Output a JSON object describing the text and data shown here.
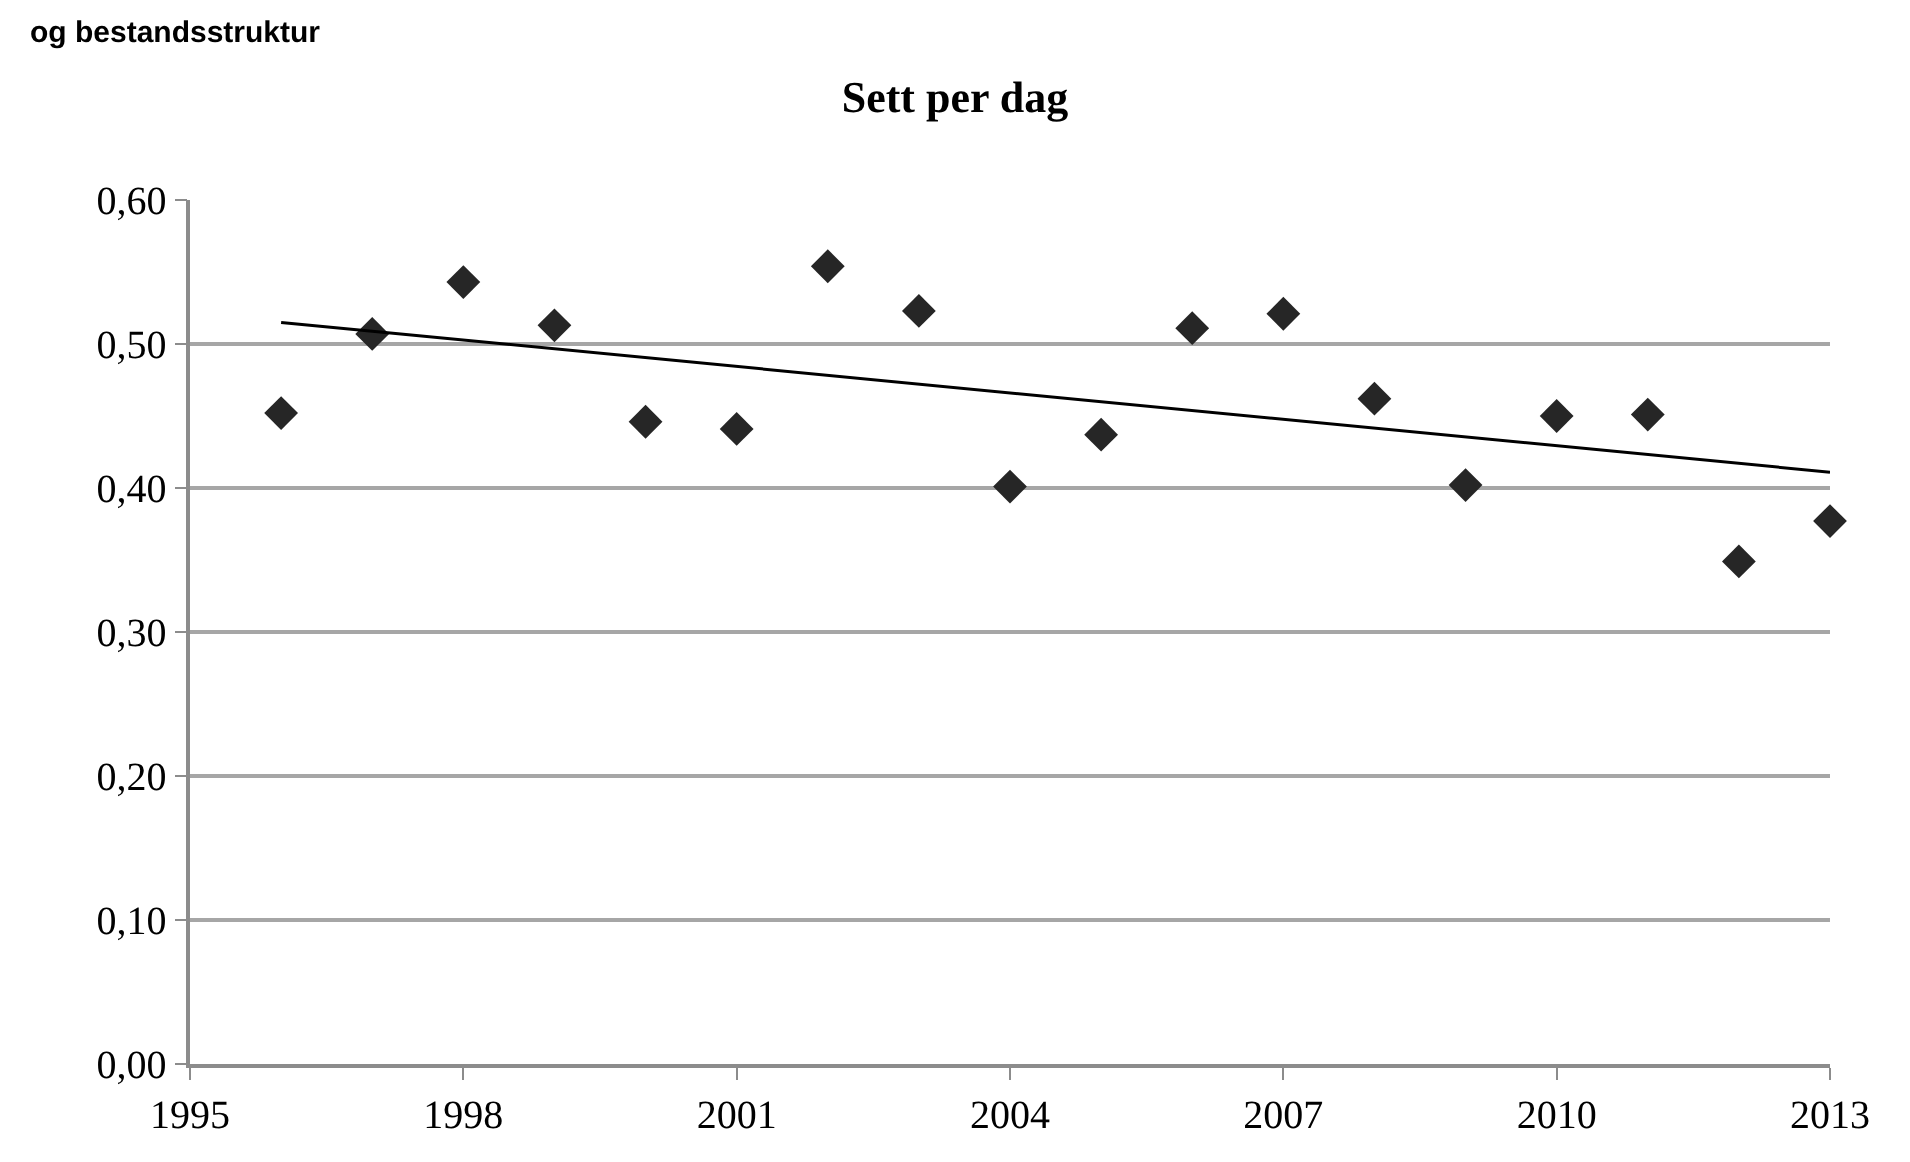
{
  "chart_data": {
    "type": "scatter",
    "title": "Sett per dag",
    "annotations": [
      "og bestandsstruktur"
    ],
    "x": [
      1996,
      1997,
      1998,
      1999,
      2000,
      2001,
      2002,
      2003,
      2004,
      2005,
      2006,
      2007,
      2008,
      2009,
      2010,
      2011,
      2012,
      2013
    ],
    "series": [
      {
        "color": "#262626",
        "marker": "diamond",
        "values": [
          0.452,
          0.507,
          0.543,
          0.513,
          0.446,
          0.441,
          0.554,
          0.523,
          0.401,
          0.437,
          0.511,
          0.521,
          0.462,
          0.402,
          0.45,
          0.451,
          0.349,
          0.377
        ]
      },
      {
        "type": "line",
        "color": "#000000",
        "x": [
          1996,
          2013
        ],
        "values": [
          0.515,
          0.411
        ],
        "line_style": "solid"
      }
    ],
    "xlim": [
      1995,
      2013
    ],
    "xticks": [
      1995,
      1998,
      2001,
      2004,
      2007,
      2010,
      2013
    ],
    "ylim": [
      0,
      0.6
    ],
    "yticks": [
      {
        "value": 0,
        "label": "0,00"
      },
      {
        "value": 0.1,
        "label": "0,10"
      },
      {
        "value": 0.2,
        "label": "0,20"
      },
      {
        "value": 0.3,
        "label": "0,30"
      },
      {
        "value": 0.4,
        "label": "0,40"
      },
      {
        "value": 0.5,
        "label": "0,50"
      },
      {
        "value": 0.6,
        "label": "0,60"
      }
    ],
    "grid": "y"
  }
}
